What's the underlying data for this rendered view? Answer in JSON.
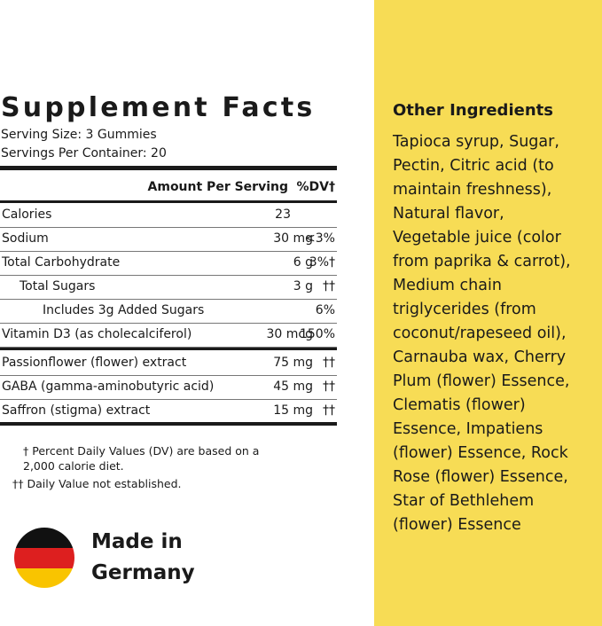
{
  "facts": {
    "title": "Supplement Facts",
    "serving_size": "Serving Size: 3 Gummies",
    "servings_per_container": "Servings Per Container: 20",
    "header": {
      "amount": "Amount Per Serving",
      "dv": "%DV†"
    },
    "rows": [
      {
        "name": "Calories",
        "amount": "23"
      },
      {
        "name": "Sodium",
        "amount": "30 mg",
        "dv": "<3%"
      },
      {
        "name": "Total Carbohydrate",
        "amount": "6 g",
        "dv": "3%†"
      },
      {
        "name": "Total Sugars",
        "amount": "3 g",
        "dv": "††"
      },
      {
        "name": "Includes 3g Added Sugars",
        "dv": "6%"
      },
      {
        "name": "Vitamin D3 (as cholecalciferol)",
        "amount": "30 mcg",
        "dv": "150%"
      },
      {
        "name": "Passionflower (flower) extract",
        "amount": "75 mg",
        "dv": "††"
      },
      {
        "name": "GABA (gamma-aminobutyric acid)",
        "amount": "45 mg",
        "dv": "††"
      },
      {
        "name": "Saffron (stigma) extract",
        "amount": "15 mg",
        "dv": "††"
      }
    ],
    "footnotes": [
      "† Percent Daily Values (DV) are based on a 2,000 calorie diet.",
      "†† Daily Value not established."
    ]
  },
  "origin": {
    "line1": "Made in",
    "line2": "Germany"
  },
  "ingredients": {
    "title": "Other Ingredients",
    "lines": [
      "Tapioca syrup, Sugar,",
      "Pectin, Citric acid (to",
      "maintain freshness),",
      "Natural flavor,",
      "Vegetable juice (color",
      "from paprika & carrot),",
      "Medium chain",
      "triglycerides (from",
      "coconut/rapeseed oil),",
      "Carnauba wax, Cherry",
      "Plum (flower) Essence,",
      "Clematis (flower)",
      "Essence, Impatiens",
      "(flower) Essence, Rock",
      "Rose (flower) Essence,",
      "Star of Bethlehem",
      "(flower) Essence"
    ]
  }
}
